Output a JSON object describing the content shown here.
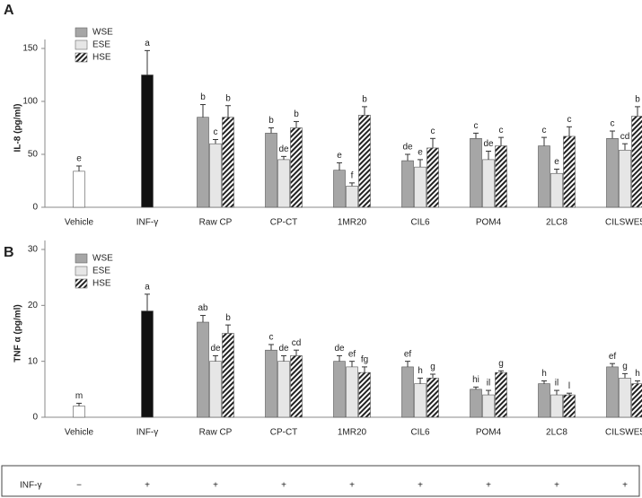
{
  "chart_data": [
    {
      "type": "bar",
      "panel": "A",
      "ylabel": "IL-8 (pg/ml)",
      "categories": [
        "Vehicle",
        "INF-γ",
        "Raw CP",
        "CP-CT",
        "1MR20",
        "CIL6",
        "POM4",
        "2LC8",
        "CILSWE5"
      ],
      "ylim": [
        0,
        150
      ],
      "yticks": [
        0,
        50,
        100,
        150
      ],
      "series": [
        {
          "color": "#ffffff",
          "values": [
            34,
            null,
            null,
            null,
            null,
            null,
            null,
            null,
            null
          ],
          "errors": [
            5,
            null,
            null,
            null,
            null,
            null,
            null,
            null,
            null
          ],
          "letters": [
            "e",
            null,
            null,
            null,
            null,
            null,
            null,
            null,
            null
          ]
        },
        {
          "color": "#111111",
          "values": [
            null,
            125,
            null,
            null,
            null,
            null,
            null,
            null,
            null
          ],
          "errors": [
            null,
            23,
            null,
            null,
            null,
            null,
            null,
            null,
            null
          ],
          "letters": [
            null,
            "a",
            null,
            null,
            null,
            null,
            null,
            null,
            null
          ]
        },
        {
          "name": "WSE",
          "color": "#a6a6a6",
          "values": [
            null,
            null,
            85,
            70,
            35,
            44,
            65,
            58,
            65
          ],
          "errors": [
            null,
            null,
            12,
            5,
            7,
            6,
            5,
            8,
            7
          ],
          "letters": [
            null,
            null,
            "b",
            "b",
            "e",
            "de",
            "c",
            "c",
            "c"
          ]
        },
        {
          "name": "ESE",
          "color": "#e6e6e6",
          "values": [
            null,
            null,
            60,
            45,
            20,
            38,
            45,
            32,
            54
          ],
          "errors": [
            null,
            null,
            4,
            3,
            3,
            7,
            8,
            4,
            6
          ],
          "letters": [
            null,
            null,
            "c",
            "de",
            "f",
            "e",
            "de",
            "e",
            "cd"
          ]
        },
        {
          "name": "HSE",
          "color": "#222222",
          "pattern": "hatch",
          "values": [
            null,
            null,
            85,
            75,
            87,
            56,
            58,
            67,
            86
          ],
          "errors": [
            null,
            null,
            11,
            6,
            8,
            9,
            8,
            9,
            9
          ],
          "letters": [
            null,
            null,
            "b",
            "b",
            "b",
            "c",
            "c",
            "c",
            "b"
          ]
        }
      ]
    },
    {
      "type": "bar",
      "panel": "B",
      "ylabel": "TNF α  (pg/ml)",
      "categories": [
        "Vehicle",
        "INF-γ",
        "Raw CP",
        "CP-CT",
        "1MR20",
        "CIL6",
        "POM4",
        "2LC8",
        "CILSWE5"
      ],
      "ylim": [
        0,
        30
      ],
      "yticks": [
        0,
        10,
        20,
        30
      ],
      "series": [
        {
          "color": "#ffffff",
          "values": [
            2,
            null,
            null,
            null,
            null,
            null,
            null,
            null,
            null
          ],
          "errors": [
            0.5,
            null,
            null,
            null,
            null,
            null,
            null,
            null,
            null
          ],
          "letters": [
            "m",
            null,
            null,
            null,
            null,
            null,
            null,
            null,
            null
          ]
        },
        {
          "color": "#111111",
          "values": [
            null,
            19,
            null,
            null,
            null,
            null,
            null,
            null,
            null
          ],
          "errors": [
            null,
            3,
            null,
            null,
            null,
            null,
            null,
            null,
            null
          ],
          "letters": [
            null,
            "a",
            null,
            null,
            null,
            null,
            null,
            null,
            null
          ]
        },
        {
          "name": "WSE",
          "color": "#a6a6a6",
          "values": [
            null,
            null,
            17,
            12,
            10,
            9,
            5,
            6,
            9
          ],
          "errors": [
            null,
            null,
            1.2,
            1,
            1,
            1,
            0.4,
            0.5,
            0.6
          ],
          "letters": [
            null,
            null,
            "ab",
            "c",
            "de",
            "ef",
            "hi",
            "h",
            "ef"
          ]
        },
        {
          "name": "ESE",
          "color": "#e6e6e6",
          "values": [
            null,
            null,
            10,
            10,
            9,
            6,
            4,
            4,
            7
          ],
          "errors": [
            null,
            null,
            1,
            1,
            1,
            1,
            0.8,
            0.8,
            0.8
          ],
          "letters": [
            null,
            null,
            "de",
            "de",
            "ef",
            "h",
            "il",
            "il",
            "g"
          ]
        },
        {
          "name": "HSE",
          "color": "#222222",
          "pattern": "hatch",
          "values": [
            null,
            null,
            15,
            11,
            8,
            7,
            8,
            4,
            6
          ],
          "errors": [
            null,
            null,
            1.5,
            1,
            1,
            0.7,
            0.3,
            0.3,
            0.5
          ],
          "letters": [
            null,
            null,
            "b",
            "cd",
            "fg",
            "g",
            "g",
            "l",
            "h"
          ]
        }
      ]
    }
  ],
  "treatment_row": {
    "label": "INF-γ",
    "marks": [
      "−",
      "+",
      "+",
      "+",
      "+",
      "+",
      "+",
      "+",
      "+"
    ]
  }
}
